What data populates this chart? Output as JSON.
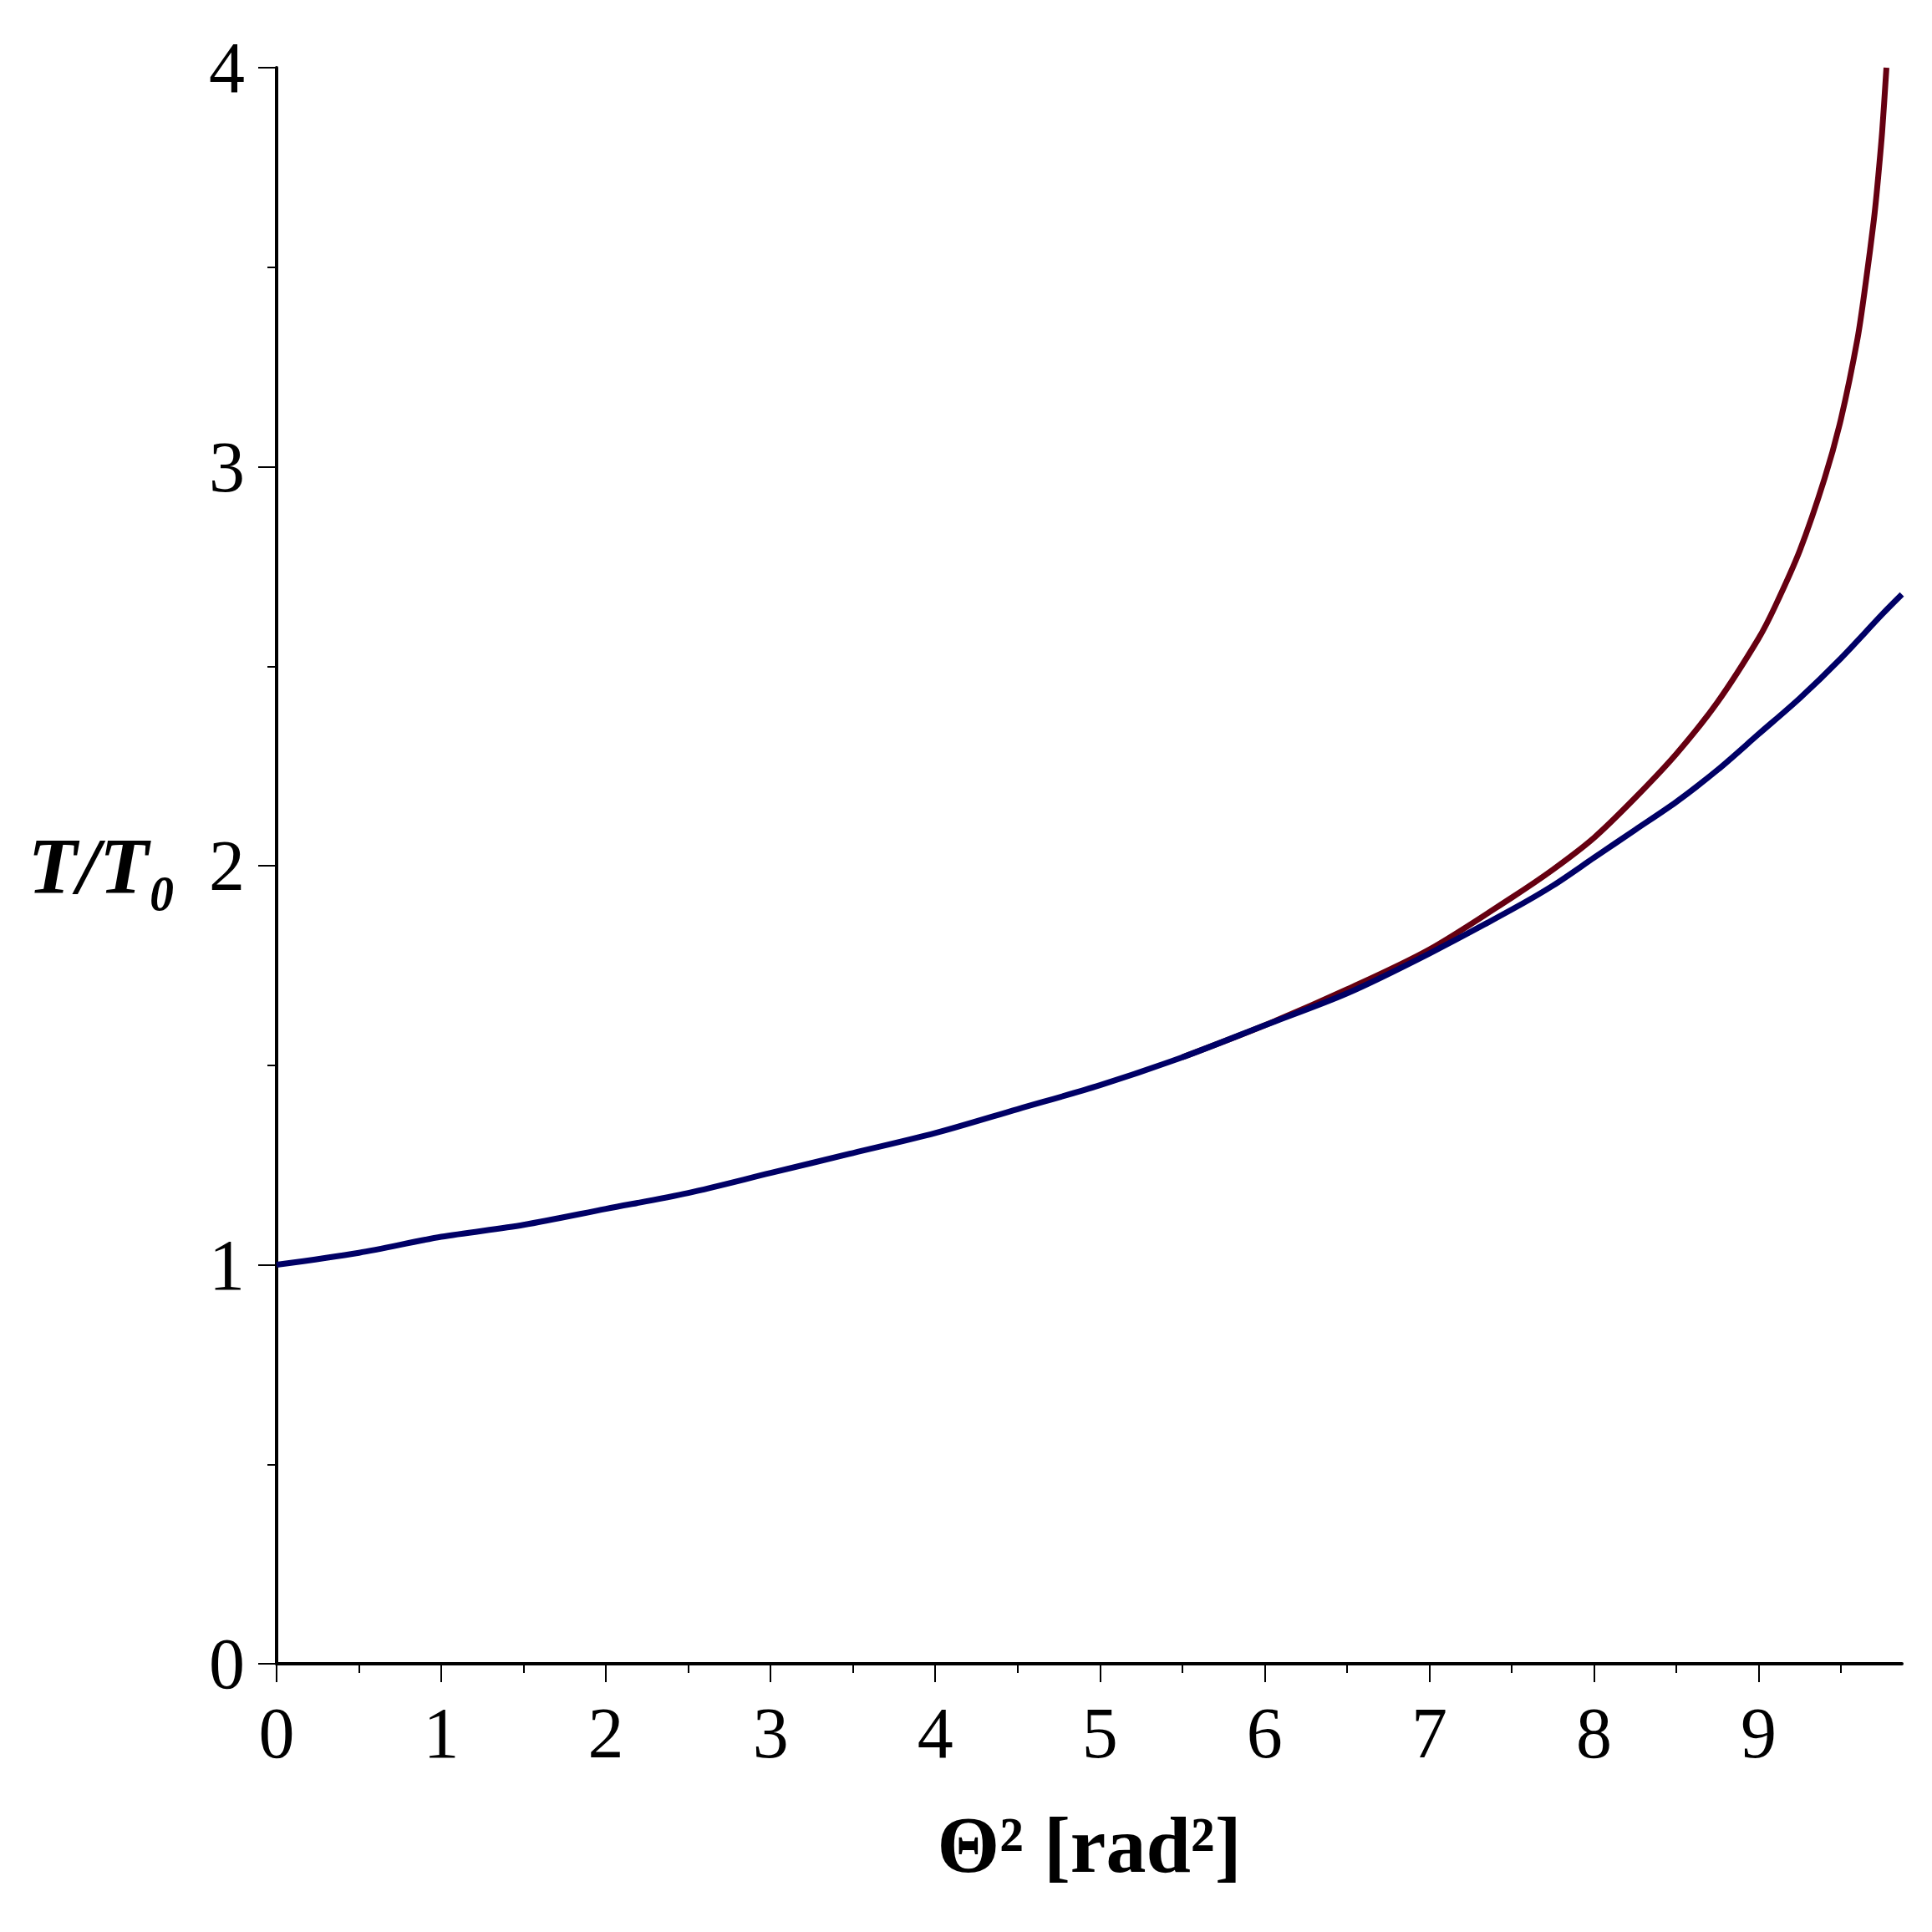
{
  "chart_data": {
    "type": "line",
    "xlabel": "Θ² [rad²]",
    "ylabel": "T/T₀",
    "xlim": [
      0,
      9.87
    ],
    "xticks": [
      0,
      {
        "value": 0.5,
        "label": null
      },
      1,
      {
        "value": 1.5,
        "label": null
      },
      2,
      {
        "value": 2.5,
        "label": null
      },
      3,
      {
        "value": 3.5,
        "label": null
      },
      4,
      {
        "value": 4.5,
        "label": null
      },
      5,
      {
        "value": 5.5,
        "label": null
      },
      6,
      {
        "value": 6.5,
        "label": null
      },
      7,
      {
        "value": 7.5,
        "label": null
      },
      8,
      {
        "value": 8.5,
        "label": null
      },
      9,
      {
        "value": 9.5,
        "label": null
      }
    ],
    "ylim": [
      0,
      4
    ],
    "yticks": [
      0,
      {
        "value": 0.5,
        "label": null
      },
      1,
      {
        "value": 1.5,
        "label": null
      },
      2,
      {
        "value": 2.5,
        "label": null
      },
      3,
      {
        "value": 3.5,
        "label": null
      },
      4
    ],
    "marker": "none",
    "line_style": "solid",
    "series": [
      {
        "color": "#660011",
        "x": [
          5.5,
          6,
          6.5,
          7,
          7.5,
          7.75,
          8,
          8.25,
          8.5,
          8.75,
          9,
          9.1,
          9.25,
          9.4,
          9.5,
          9.6,
          9.65,
          9.7,
          9.72,
          9.75,
          9.776
        ],
        "values": [
          1.52,
          1.6,
          1.69,
          1.79,
          1.92,
          1.99,
          2.07,
          2.17,
          2.28,
          2.41,
          2.57,
          2.65,
          2.79,
          2.97,
          3.12,
          3.32,
          3.46,
          3.62,
          3.7,
          3.84,
          4
        ]
      },
      {
        "color": "#000066",
        "x": [
          0,
          0.5,
          1,
          1.5,
          2,
          2.5,
          3,
          3.5,
          4,
          4.5,
          5,
          5.5,
          6,
          6.5,
          7,
          7.5,
          7.75,
          8,
          8.25,
          8.5,
          8.75,
          9,
          9.25,
          9.5,
          9.75,
          9.87
        ],
        "values": [
          1,
          1.03,
          1.07,
          1.1,
          1.14,
          1.18,
          1.23,
          1.28,
          1.33,
          1.39,
          1.45,
          1.52,
          1.6,
          1.68,
          1.78,
          1.89,
          1.95,
          2.02,
          2.09,
          2.16,
          2.24,
          2.33,
          2.42,
          2.52,
          2.63,
          2.68
        ]
      }
    ]
  }
}
